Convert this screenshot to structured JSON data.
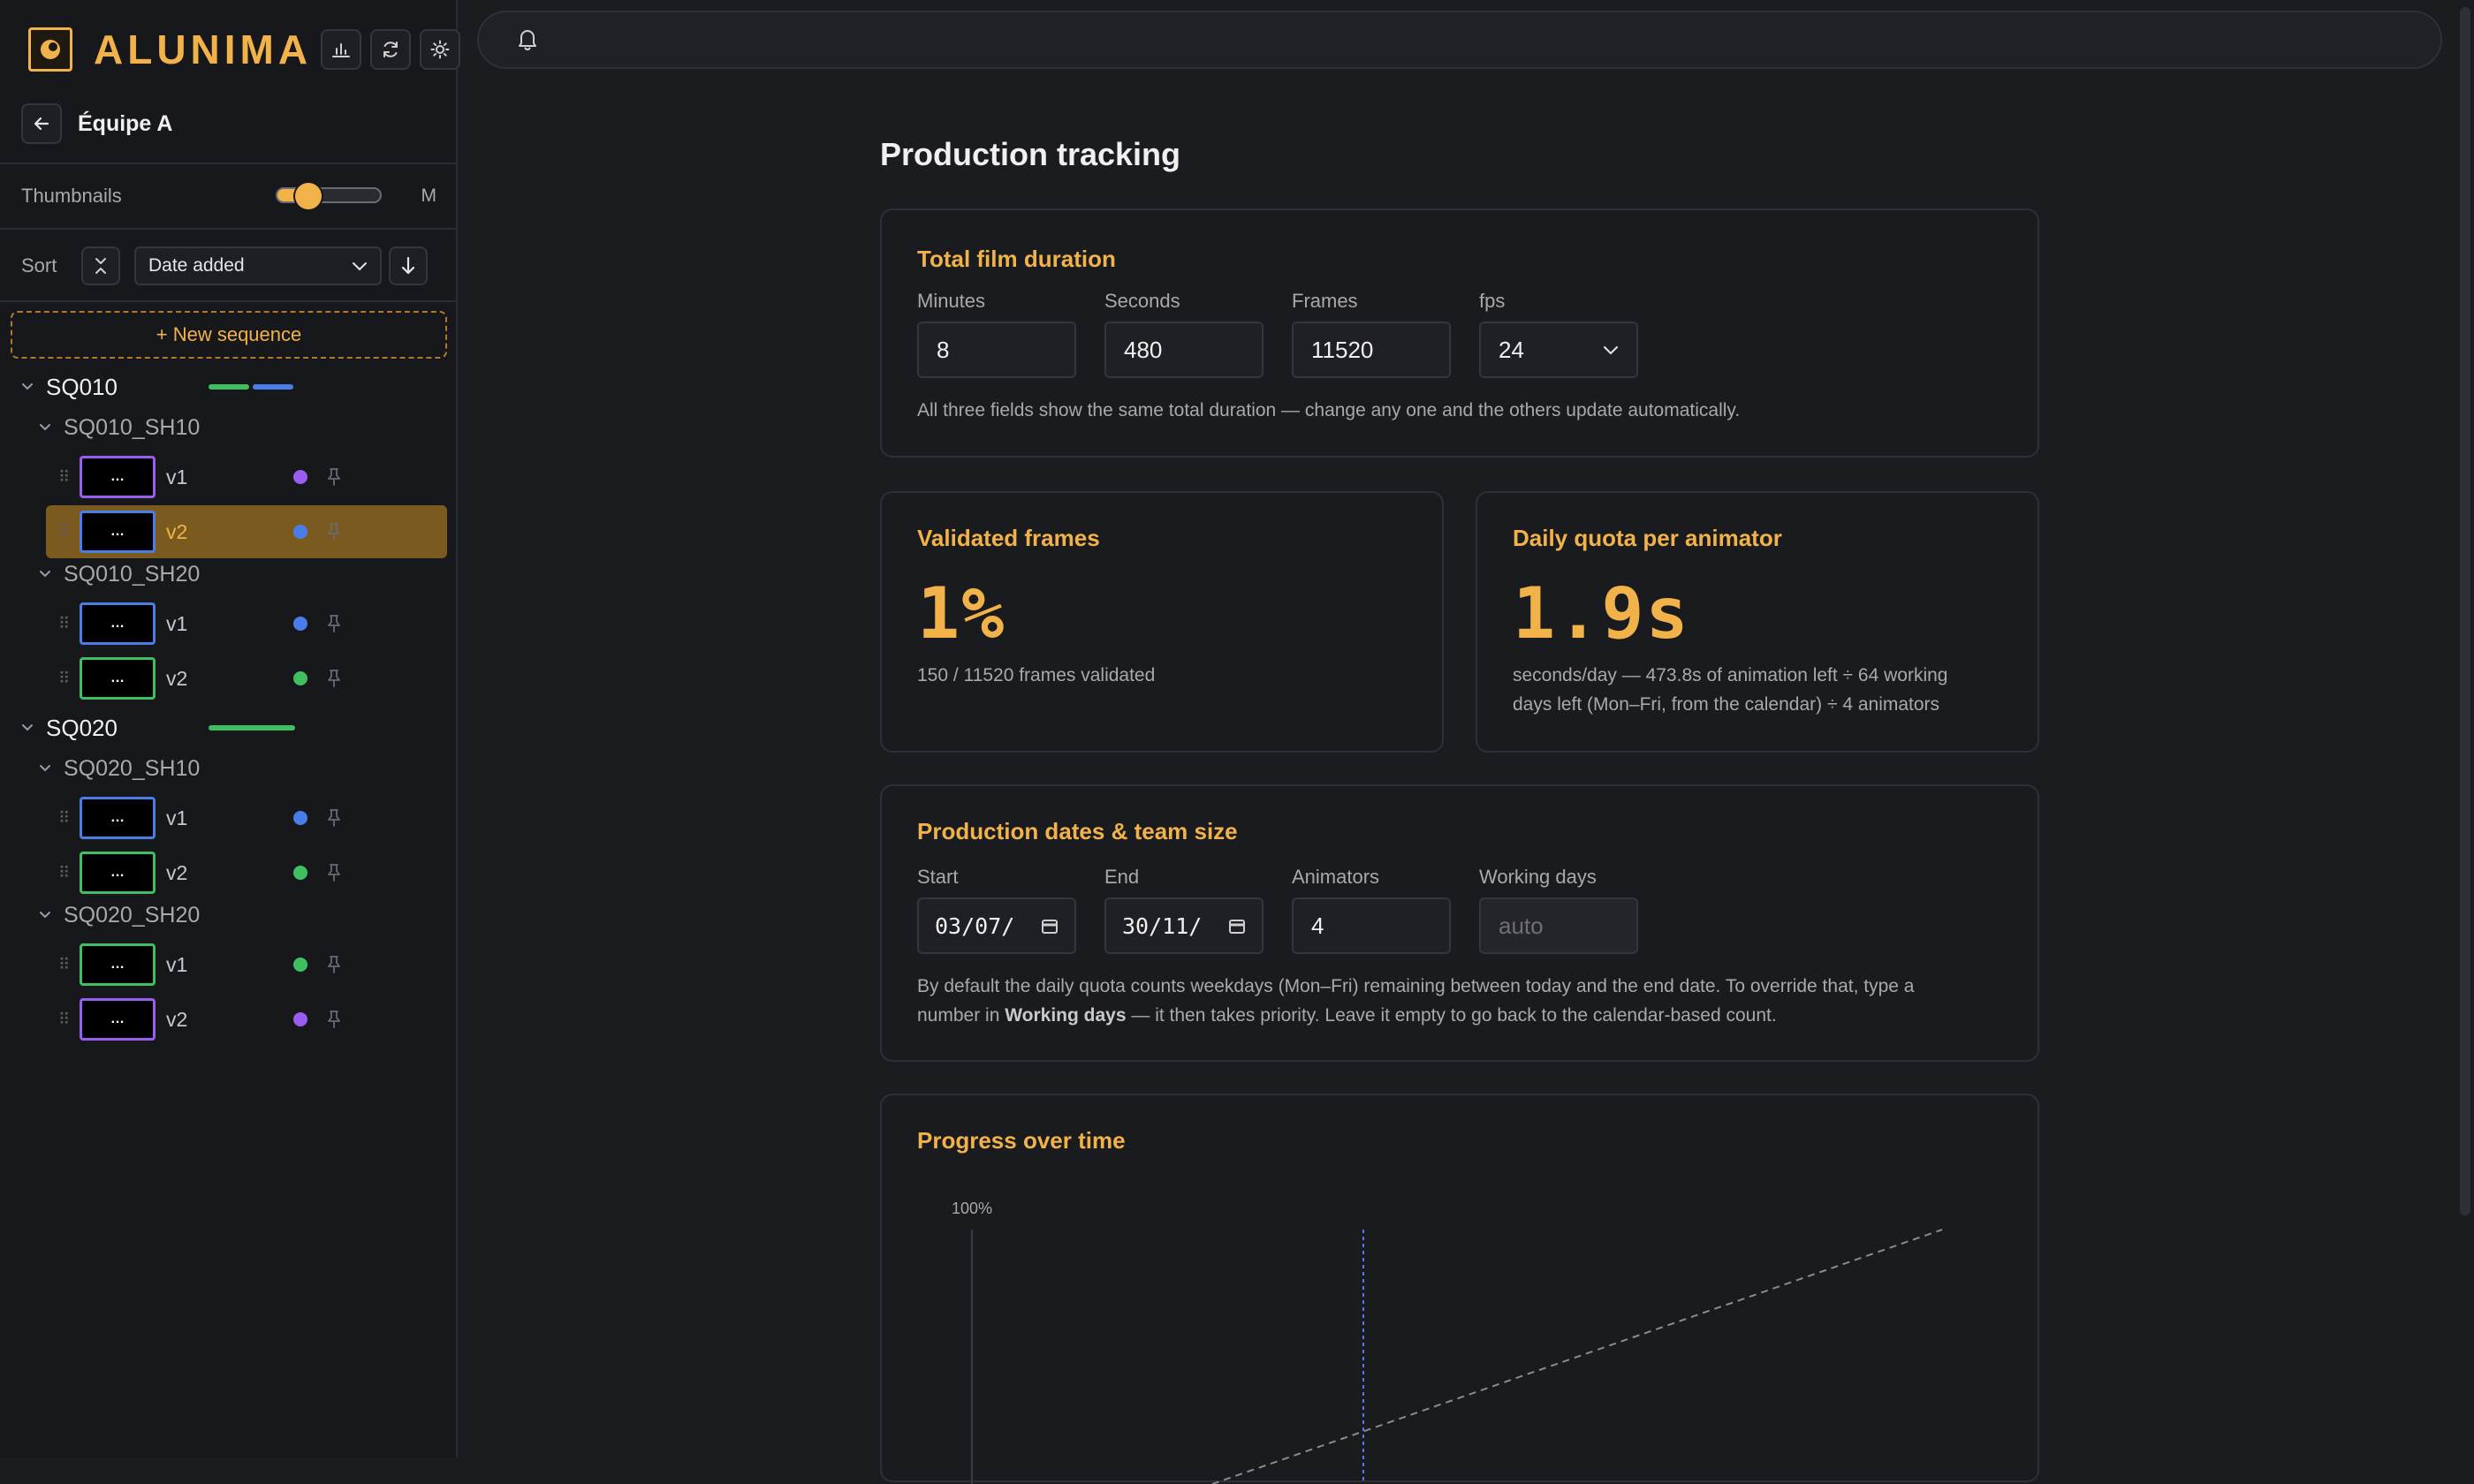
{
  "app": {
    "brand": "ALUNIMA",
    "accent": "#f2b24a"
  },
  "header": {
    "icons": [
      "bar-chart-icon",
      "refresh-icon",
      "sun-icon"
    ],
    "topbar_icon": "bell-icon"
  },
  "sidebar": {
    "team": "Équipe A",
    "thumbnails_label": "Thumbnails",
    "thumbnails_size": "M",
    "thumbnails_level": 0.3,
    "sort_label": "Sort",
    "sort_value": "Date added",
    "new_sequence": "+ New sequence",
    "tree": [
      {
        "name": "SQ010",
        "status_colors": [
          "#3fbf5f",
          "#4a7de8"
        ],
        "shots": [
          {
            "name": "SQ010_SH10",
            "versions": [
              {
                "label": "v1",
                "thumb": "…",
                "color": "#9b5cf0",
                "selected": false
              },
              {
                "label": "v2",
                "thumb": "…",
                "color": "#4a7de8",
                "selected": true
              }
            ]
          },
          {
            "name": "SQ010_SH20",
            "versions": [
              {
                "label": "v1",
                "thumb": "…",
                "color": "#4a7de8",
                "selected": false
              },
              {
                "label": "v2",
                "thumb": "…",
                "color": "#3fbf5f",
                "selected": false
              }
            ]
          }
        ]
      },
      {
        "name": "SQ020",
        "status_colors": [
          "#3fbf5f"
        ],
        "shots": [
          {
            "name": "SQ020_SH10",
            "versions": [
              {
                "label": "v1",
                "thumb": "…",
                "color": "#4a7de8",
                "selected": false
              },
              {
                "label": "v2",
                "thumb": "…",
                "color": "#3fbf5f",
                "selected": false
              }
            ]
          },
          {
            "name": "SQ020_SH20",
            "versions": [
              {
                "label": "v1",
                "thumb": "…",
                "color": "#3fbf5f",
                "selected": false
              },
              {
                "label": "v2",
                "thumb": "…",
                "color": "#9b5cf0",
                "selected": false
              }
            ]
          }
        ]
      }
    ]
  },
  "main": {
    "title": "Production tracking",
    "duration": {
      "title": "Total film duration",
      "minutes_label": "Minutes",
      "minutes": "8",
      "seconds_label": "Seconds",
      "seconds": "480",
      "frames_label": "Frames",
      "frames": "11520",
      "fps_label": "fps",
      "fps": "24",
      "help": "All three fields show the same total duration — change any one and the others update automatically."
    },
    "validated": {
      "title": "Validated frames",
      "value": "1%",
      "sub": "150 / 11520 frames validated"
    },
    "quota": {
      "title": "Daily quota per animator",
      "value": "1.9s",
      "sub": "seconds/day — 473.8s of animation left ÷ 64 working days left (Mon–Fri, from the calendar) ÷ 4 animators"
    },
    "dates": {
      "title": "Production dates & team size",
      "start_label": "Start",
      "start": "03/07/",
      "end_label": "End",
      "end": "30/11/",
      "animators_label": "Animators",
      "animators": "4",
      "working_days_label": "Working days",
      "working_days_placeholder": "auto",
      "help_1": "By default the daily quota counts weekdays (Mon–Fri) remaining between today and the end date. To override that, type a number in ",
      "help_bold": "Working days",
      "help_2": " — it then takes priority. Leave it empty to go back to the calendar-based count."
    },
    "progress": {
      "title": "Progress over time"
    }
  },
  "chart_data": {
    "type": "line",
    "title": "Progress over time",
    "y_tick_labels": [
      "100%"
    ],
    "series": [
      {
        "style": "dashed",
        "color": "#8a8a8f"
      }
    ],
    "markers": [
      {
        "style": "dotted-vertical",
        "color": "#4a7de8"
      }
    ]
  }
}
